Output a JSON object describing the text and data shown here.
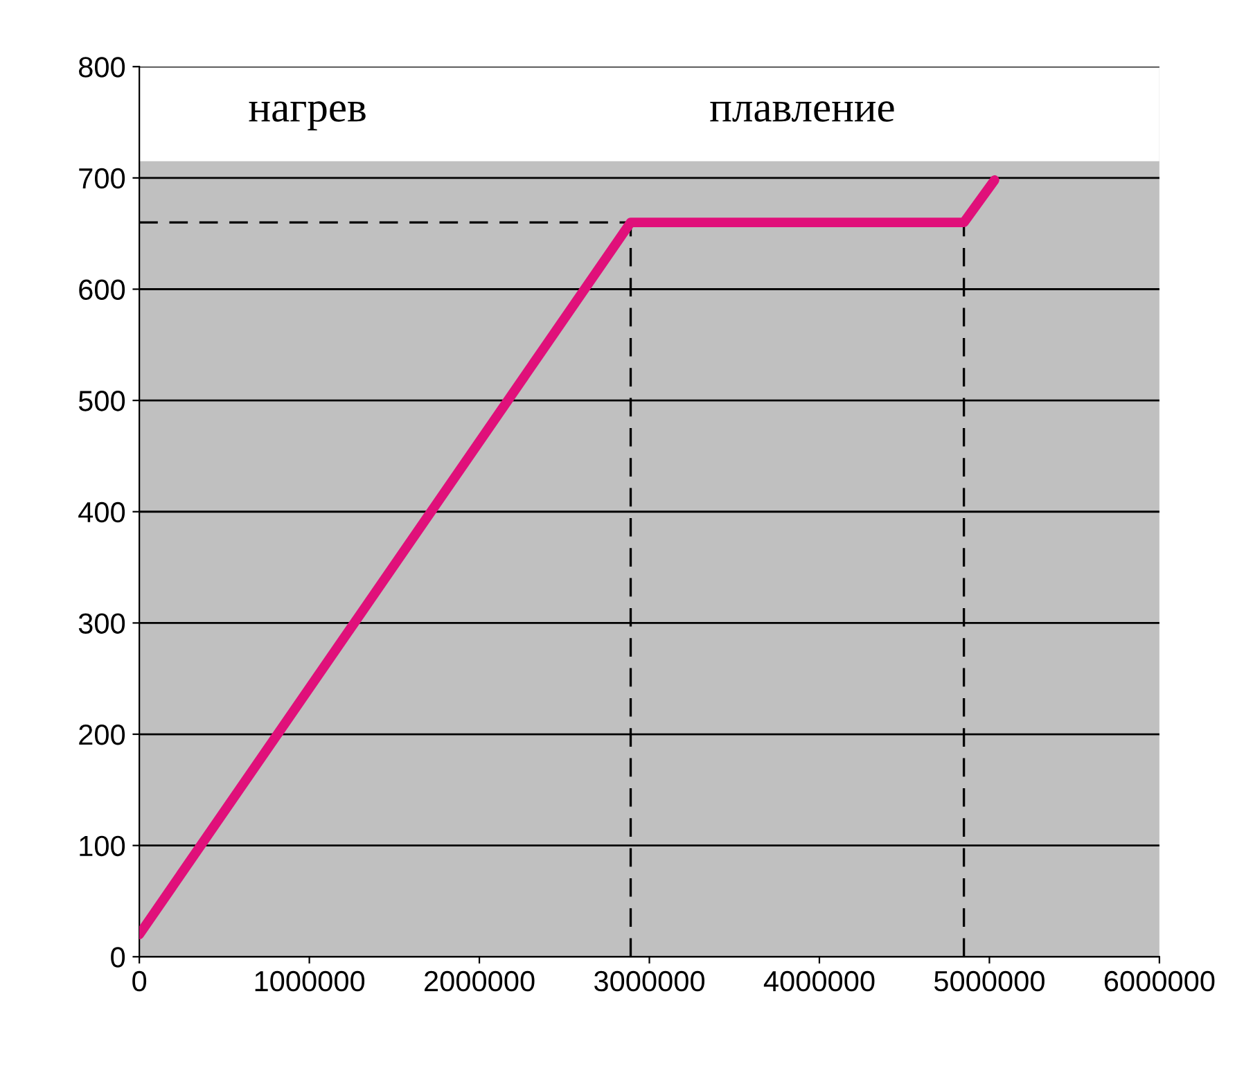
{
  "chart_data": {
    "type": "line",
    "series": [
      {
        "color": "#e0107a",
        "x": [
          0,
          2890000,
          4850000,
          5030000
        ],
        "values": [
          20,
          660,
          660,
          698
        ]
      },
      {
        "color": "#000000",
        "line_style": "dashed",
        "x": [
          0,
          2890000
        ],
        "values": [
          660,
          660
        ]
      },
      {
        "color": "#000000",
        "line_style": "dashed",
        "x": [
          2890000,
          2890000
        ],
        "values": [
          0,
          660
        ]
      },
      {
        "color": "#000000",
        "line_style": "dashed",
        "x": [
          4850000,
          4850000
        ],
        "values": [
          0,
          660
        ]
      }
    ],
    "bands": [
      {
        "axis": "y",
        "from": 715,
        "to": 800,
        "color": "#ffffff"
      }
    ],
    "annotations": [
      "нагрев",
      "плавление"
    ],
    "xlim": [
      0,
      6000000
    ],
    "xticks": [
      0,
      1000000,
      2000000,
      3000000,
      4000000,
      5000000,
      6000000
    ],
    "ylim": [
      0,
      800
    ],
    "yticks": [
      0,
      100,
      200,
      300,
      400,
      500,
      600,
      700,
      800
    ],
    "grid": "y",
    "marker": "none"
  }
}
